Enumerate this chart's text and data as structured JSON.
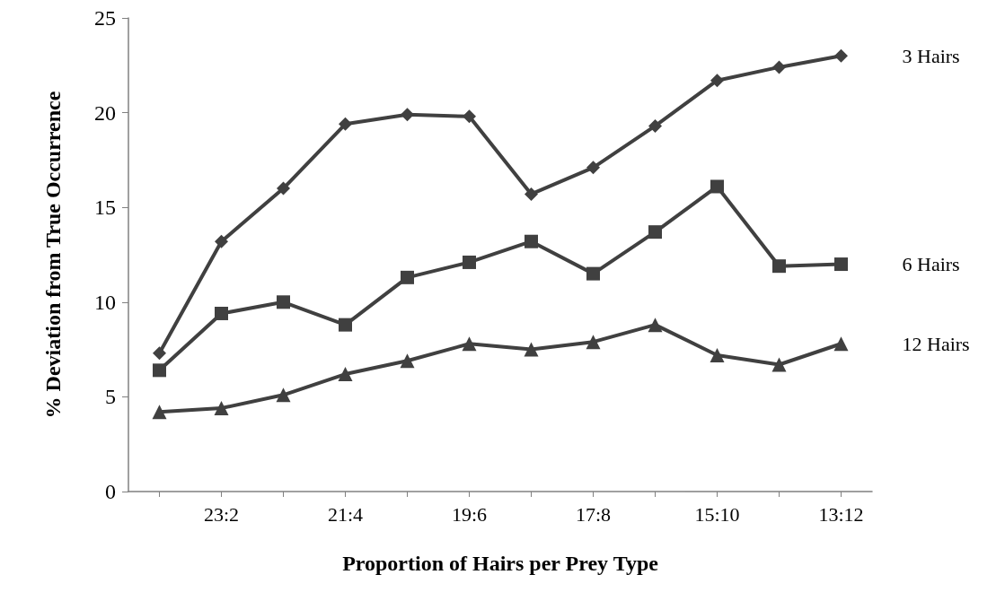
{
  "chart_data": {
    "type": "line",
    "xlabel": "Proportion of Hairs per Prey Type",
    "ylabel": "% Deviation from True Occurrence",
    "categories": [
      null,
      "23:2",
      null,
      "21:4",
      null,
      "19:6",
      null,
      "17:8",
      null,
      "15:10",
      null,
      "13:12"
    ],
    "series": [
      {
        "name": "3 Hairs",
        "color": "#404040",
        "marker": "diamond",
        "values": [
          7.3,
          13.2,
          16.0,
          19.4,
          19.9,
          19.8,
          15.7,
          17.1,
          19.3,
          21.7,
          22.4,
          23.0
        ]
      },
      {
        "name": "6 Hairs",
        "color": "#404040",
        "marker": "square",
        "values": [
          6.4,
          9.4,
          10.0,
          8.8,
          11.3,
          12.1,
          13.2,
          11.5,
          13.7,
          16.1,
          11.9,
          12.0
        ]
      },
      {
        "name": "12 Hairs",
        "color": "#404040",
        "marker": "triangle",
        "values": [
          4.2,
          4.4,
          5.1,
          6.2,
          6.9,
          7.8,
          7.5,
          7.9,
          8.8,
          7.2,
          6.7,
          7.8
        ]
      }
    ],
    "ylim": [
      0,
      25
    ],
    "yticks": [
      0,
      5,
      10,
      15,
      20,
      25
    ],
    "grid": false,
    "legend": false,
    "line_style": "solid"
  }
}
